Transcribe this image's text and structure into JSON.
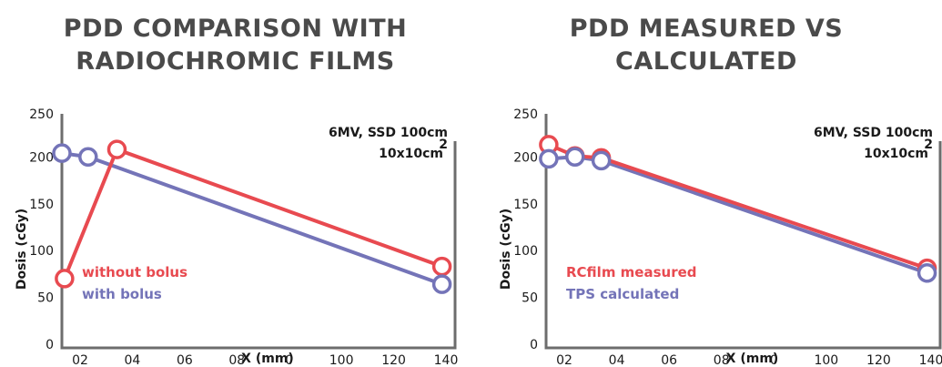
{
  "colors": {
    "red": "#e84a50",
    "blue": "#7474b8",
    "frame": "#6d6d6d"
  },
  "charts": [
    {
      "title_lines": [
        "PDD COMPARISON WITH",
        "RADIOCHROMIC FILMS"
      ],
      "annotation_lines": [
        "6MV, SSD 100cm",
        "10x10cm"
      ],
      "annotation_sup": "2",
      "chart_data": {
        "type": "line",
        "xlabel": "X (mm)",
        "ylabel": "Dosis (cGy)",
        "ylim": [
          0,
          250
        ],
        "yticks": [
          0,
          50,
          100,
          150,
          200,
          250
        ],
        "x_tick_labels": [
          "02",
          "04",
          "06",
          "08",
          "0",
          "100",
          "120",
          "140"
        ],
        "xlim": [
          0,
          150
        ],
        "grid": false,
        "legend_position": "bottom-left",
        "series": [
          {
            "name": "without bolus",
            "color": "red",
            "points": [
              [
                1,
                74
              ],
              [
                21,
                212
              ],
              [
                145,
                87
              ]
            ]
          },
          {
            "name": "with bolus",
            "color": "blue",
            "points": [
              [
                0,
                208
              ],
              [
                10,
                204
              ],
              [
                145,
                68
              ]
            ]
          }
        ]
      }
    },
    {
      "title_lines": [
        "PDD MEASURED VS",
        "CALCULATED"
      ],
      "annotation_lines": [
        "6MV, SSD 100cm",
        "10x10cm"
      ],
      "annotation_sup": "2",
      "chart_data": {
        "type": "line",
        "xlabel": "X (mm)",
        "ylabel": "Dosis (cGy)",
        "ylim": [
          0,
          250
        ],
        "yticks": [
          0,
          50,
          100,
          150,
          200,
          250
        ],
        "x_tick_labels": [
          "02",
          "04",
          "06",
          "08",
          "0",
          "100",
          "120",
          "140"
        ],
        "xlim": [
          0,
          150
        ],
        "grid": false,
        "legend_position": "bottom-left",
        "series": [
          {
            "name": "RCfilm measured",
            "color": "red",
            "points": [
              [
                1,
                217
              ],
              [
                11,
                205
              ],
              [
                21,
                203
              ],
              [
                145,
                85
              ]
            ]
          },
          {
            "name": "TPS calculated",
            "color": "blue",
            "points": [
              [
                1,
                202
              ],
              [
                11,
                204
              ],
              [
                21,
                200
              ],
              [
                145,
                80
              ]
            ]
          }
        ]
      }
    }
  ]
}
